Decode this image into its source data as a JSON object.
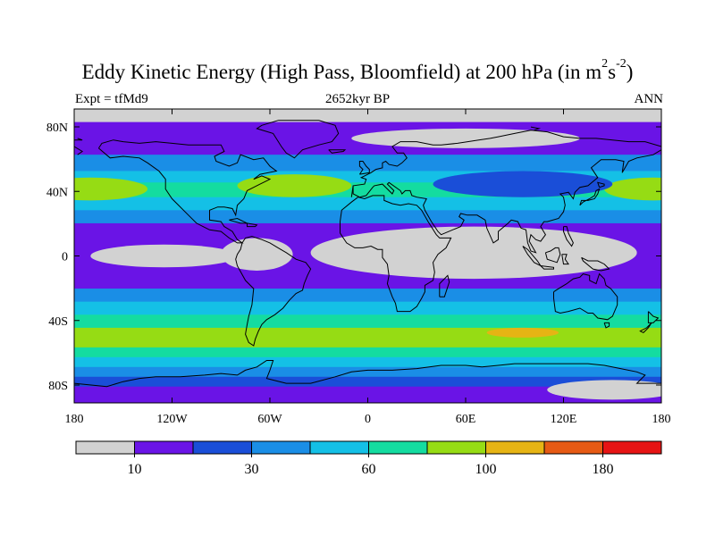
{
  "chart_data": {
    "type": "heatmap",
    "title": {
      "main": "Eddy Kinetic Energy (High Pass, Bloomfield) at 200 hPa (in m",
      "sup1": "2",
      "s": "s",
      "sup2": "-2",
      "close": ")"
    },
    "subtitle_left": "Expt = tfMd9",
    "subtitle_center": "2652kyr BP",
    "subtitle_right": "ANN",
    "x_ticks": [
      "180",
      "120W",
      "60W",
      "0",
      "60E",
      "120E",
      "180"
    ],
    "y_ticks": [
      "80N",
      "40N",
      "0",
      "40S",
      "80S"
    ],
    "x_range_lon": [
      -180,
      180
    ],
    "y_range_lat": [
      -90,
      90
    ],
    "colorbar": {
      "colors": [
        "#d2d2d2",
        "#6a14e6",
        "#1a4ed8",
        "#1a8ee6",
        "#14c0e6",
        "#14dca0",
        "#96dc14",
        "#e6b414",
        "#e65a14",
        "#e61414"
      ],
      "labels": [
        {
          "text": "10",
          "bin": 1
        },
        {
          "text": "30",
          "bin": 3
        },
        {
          "text": "60",
          "bin": 5
        },
        {
          "text": "100",
          "bin": 7
        },
        {
          "text": "180",
          "bin": 9
        }
      ]
    },
    "field_bands": [
      {
        "lat_from": 90,
        "lat_to": 82,
        "level": 0
      },
      {
        "lat_from": 82,
        "lat_to": 72,
        "level": 1
      },
      {
        "lat_from": 72,
        "lat_to": 62,
        "level": 1
      },
      {
        "lat_from": 62,
        "lat_to": 52,
        "level": 3
      },
      {
        "lat_from": 52,
        "lat_to": 45,
        "level": 4
      },
      {
        "lat_from": 45,
        "lat_to": 36,
        "level": 5
      },
      {
        "lat_from": 36,
        "lat_to": 28,
        "level": 4
      },
      {
        "lat_from": 28,
        "lat_to": 20,
        "level": 3
      },
      {
        "lat_from": 20,
        "lat_to": 12,
        "level": 1
      },
      {
        "lat_from": 12,
        "lat_to": -10,
        "level": 1
      },
      {
        "lat_from": -10,
        "lat_to": -20,
        "level": 1
      },
      {
        "lat_from": -20,
        "lat_to": -28,
        "level": 3
      },
      {
        "lat_from": -28,
        "lat_to": -36,
        "level": 4
      },
      {
        "lat_from": -36,
        "lat_to": -44,
        "level": 5
      },
      {
        "lat_from": -44,
        "lat_to": -56,
        "level": 6
      },
      {
        "lat_from": -56,
        "lat_to": -62,
        "level": 5
      },
      {
        "lat_from": -62,
        "lat_to": -68,
        "level": 4
      },
      {
        "lat_from": -68,
        "lat_to": -74,
        "level": 3
      },
      {
        "lat_from": -74,
        "lat_to": -80,
        "level": 2
      },
      {
        "lat_from": -80,
        "lat_to": -90,
        "level": 1
      }
    ],
    "field_patches": [
      {
        "type": "ellipse",
        "lon": -170,
        "lat": 41,
        "rlon": 35,
        "rlat": 7,
        "level": 6
      },
      {
        "type": "ellipse",
        "lon": 175,
        "lat": 41,
        "rlon": 30,
        "rlat": 7,
        "level": 6
      },
      {
        "type": "ellipse",
        "lon": -45,
        "lat": 43,
        "rlon": 35,
        "rlat": 7,
        "level": 6
      },
      {
        "type": "ellipse",
        "lon": 95,
        "lat": 44,
        "rlon": 55,
        "rlat": 8,
        "level": 2
      },
      {
        "type": "ellipse",
        "lon": 60,
        "lat": 72,
        "rlon": 70,
        "rlat": 6,
        "level": 0
      },
      {
        "type": "ellipse",
        "lon": -95,
        "lat": 88,
        "rlon": 60,
        "rlat": 5,
        "level": 0
      },
      {
        "type": "ellipse",
        "lon": -125,
        "lat": 0,
        "rlon": 45,
        "rlat": 7,
        "level": 0
      },
      {
        "type": "ellipse",
        "lon": -68,
        "lat": 1,
        "rlon": 22,
        "rlat": 10,
        "level": 0
      },
      {
        "type": "ellipse",
        "lon": 65,
        "lat": 2,
        "rlon": 100,
        "rlat": 16,
        "level": 0
      },
      {
        "type": "ellipse",
        "lon": 95,
        "lat": -47,
        "rlon": 22,
        "rlat": 3,
        "level": 7
      },
      {
        "type": "ellipse",
        "lon": 150,
        "lat": -82,
        "rlon": 40,
        "rlat": 6,
        "level": 0
      }
    ]
  }
}
